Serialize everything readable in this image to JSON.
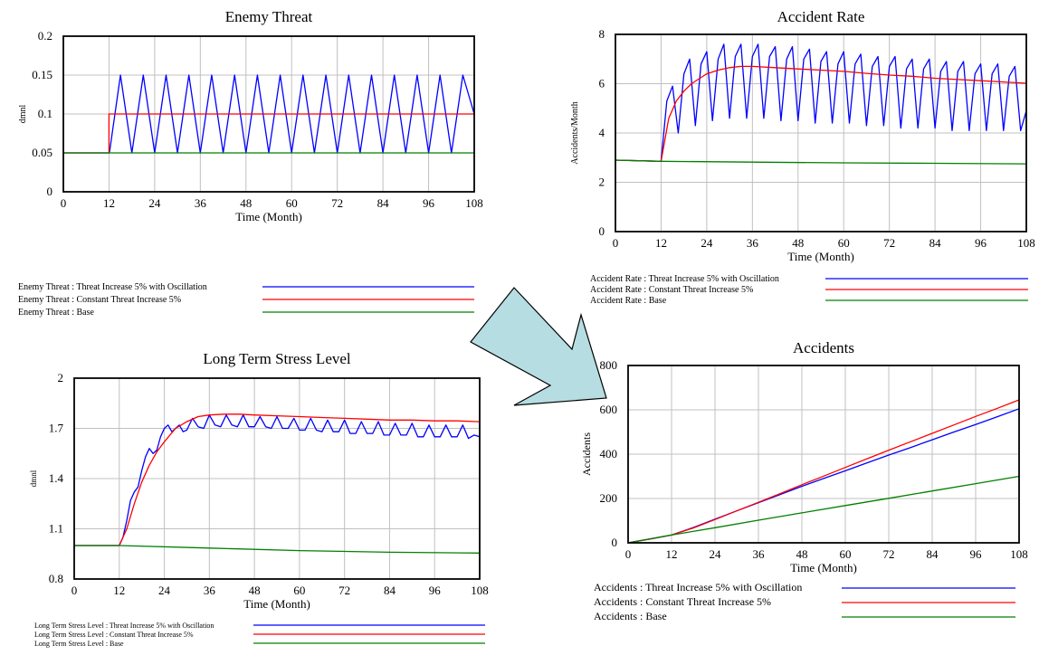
{
  "charts": [
    {
      "id": "chart-enemy",
      "title": "Enemy Threat",
      "xlabel": "Time (Month)",
      "ylabel": "dmnl",
      "xlim": [
        0,
        108
      ],
      "ylim": [
        0,
        0.2
      ],
      "xticks": [
        0,
        12,
        24,
        36,
        48,
        60,
        72,
        84,
        96,
        108
      ],
      "yticks": [
        0,
        0.05,
        0.1,
        0.15,
        0.2
      ],
      "ytick_labels": [
        "0",
        "0.05",
        "0.1",
        "0.15",
        "0.2"
      ],
      "legend": [
        "Enemy Threat : Threat Increase 5% with Oscillation",
        "Enemy Threat : Constant Threat Increase 5%",
        "Enemy Threat : Base"
      ]
    },
    {
      "id": "chart-accrate",
      "title": "Accident Rate",
      "xlabel": "Time (Month)",
      "ylabel": "Accidents/Month",
      "xlim": [
        0,
        108
      ],
      "ylim": [
        0,
        8
      ],
      "xticks": [
        0,
        12,
        24,
        36,
        48,
        60,
        72,
        84,
        96,
        108
      ],
      "yticks": [
        0,
        2,
        4,
        6,
        8
      ],
      "ytick_labels": [
        "0",
        "2",
        "4",
        "6",
        "8"
      ],
      "legend": [
        "Accident Rate : Threat Increase 5% with Oscillation",
        "Accident Rate : Constant Threat Increase 5%",
        "Accident Rate : Base"
      ]
    },
    {
      "id": "chart-stress",
      "title": "Long Term Stress Level",
      "xlabel": "Time (Month)",
      "ylabel": "dmnl",
      "xlim": [
        0,
        108
      ],
      "ylim": [
        0.8,
        2.0
      ],
      "xticks": [
        0,
        12,
        24,
        36,
        48,
        60,
        72,
        84,
        96,
        108
      ],
      "yticks": [
        0.8,
        1.1,
        1.4,
        1.7,
        2.0
      ],
      "ytick_labels": [
        "0.8",
        "1.1",
        "1.4",
        "1.7",
        "2"
      ],
      "legend": [
        "Long Term Stress Level : Threat Increase 5% with Oscillation",
        "Long Term Stress Level : Constant Threat Increase 5%",
        "Long Term Stress Level : Base"
      ]
    },
    {
      "id": "chart-accidents",
      "title": "Accidents",
      "xlabel": "Time (Month)",
      "ylabel": "Accidents",
      "xlim": [
        0,
        108
      ],
      "ylim": [
        0,
        800
      ],
      "xticks": [
        0,
        12,
        24,
        36,
        48,
        60,
        72,
        84,
        96,
        108
      ],
      "yticks": [
        0,
        200,
        400,
        600,
        800
      ],
      "ytick_labels": [
        "0",
        "200",
        "400",
        "600",
        "800"
      ],
      "legend": [
        "Accidents : Threat Increase 5% with Oscillation",
        "Accidents : Constant Threat Increase 5%",
        "Accidents : Base"
      ]
    }
  ],
  "series_colors": [
    "#0000ff",
    "#ff0000",
    "#008000"
  ],
  "chart_data": [
    {
      "type": "line",
      "title": "Enemy Threat",
      "xlabel": "Time (Month)",
      "ylabel": "dmnl",
      "xlim": [
        0,
        108
      ],
      "ylim": [
        0,
        0.2
      ],
      "grid": true,
      "legend": "bottom",
      "series": [
        {
          "name": "Enemy Threat : Threat Increase 5% with Oscillation",
          "x": [
            0,
            12,
            12.1,
            15,
            18,
            21,
            24,
            27,
            30,
            33,
            36,
            39,
            42,
            45,
            48,
            51,
            54,
            57,
            60,
            63,
            66,
            69,
            72,
            75,
            78,
            81,
            84,
            87,
            90,
            93,
            96,
            99,
            102,
            105,
            108
          ],
          "y": [
            0.05,
            0.05,
            0.05,
            0.15,
            0.05,
            0.15,
            0.05,
            0.15,
            0.05,
            0.15,
            0.05,
            0.15,
            0.05,
            0.15,
            0.05,
            0.15,
            0.05,
            0.15,
            0.05,
            0.15,
            0.05,
            0.15,
            0.05,
            0.15,
            0.05,
            0.15,
            0.05,
            0.15,
            0.05,
            0.15,
            0.05,
            0.15,
            0.05,
            0.15,
            0.1
          ]
        },
        {
          "name": "Enemy Threat : Constant Threat Increase 5%",
          "x": [
            0,
            12,
            12,
            108
          ],
          "y": [
            0.05,
            0.05,
            0.1,
            0.1
          ]
        },
        {
          "name": "Enemy Threat : Base",
          "x": [
            0,
            108
          ],
          "y": [
            0.05,
            0.05
          ]
        }
      ]
    },
    {
      "type": "line",
      "title": "Accident Rate",
      "xlabel": "Time (Month)",
      "ylabel": "Accidents/Month",
      "xlim": [
        0,
        108
      ],
      "ylim": [
        0,
        8
      ],
      "grid": true,
      "legend": "bottom",
      "series": [
        {
          "name": "Accident Rate : Threat Increase 5% with Oscillation",
          "x": [
            0,
            12,
            13.5,
            15,
            16.5,
            18,
            19.5,
            21,
            22.5,
            24,
            25.5,
            27,
            28.5,
            30,
            31.5,
            33,
            34.5,
            36,
            37.5,
            39,
            40.5,
            42,
            43.5,
            45,
            46.5,
            48,
            49.5,
            51,
            52.5,
            54,
            55.5,
            57,
            58.5,
            60,
            61.5,
            63,
            64.5,
            66,
            67.5,
            69,
            70.5,
            72,
            73.5,
            75,
            76.5,
            78,
            79.5,
            81,
            82.5,
            84,
            85.5,
            87,
            88.5,
            90,
            91.5,
            93,
            94.5,
            96,
            97.5,
            99,
            100.5,
            102,
            103.5,
            105,
            106.5,
            108
          ],
          "y": [
            2.9,
            2.85,
            5.3,
            5.9,
            4.0,
            6.4,
            7.0,
            4.3,
            6.8,
            7.3,
            4.5,
            7.0,
            7.6,
            4.6,
            7.1,
            7.6,
            4.6,
            7.1,
            7.6,
            4.6,
            7.1,
            7.5,
            4.5,
            7.0,
            7.5,
            4.5,
            7.0,
            7.4,
            4.4,
            6.9,
            7.3,
            4.4,
            6.8,
            7.3,
            4.4,
            6.8,
            7.2,
            4.3,
            6.7,
            7.1,
            4.3,
            6.7,
            7.1,
            4.2,
            6.6,
            7.0,
            4.2,
            6.6,
            7.0,
            4.2,
            6.5,
            6.9,
            4.1,
            6.5,
            6.9,
            4.1,
            6.4,
            6.8,
            4.1,
            6.4,
            6.8,
            4.1,
            6.3,
            6.7,
            4.1,
            4.9
          ]
        },
        {
          "name": "Accident Rate : Constant Threat Increase 5%",
          "x": [
            0,
            12,
            14,
            16,
            18,
            20,
            22,
            24,
            27,
            30,
            33,
            36,
            42,
            48,
            54,
            60,
            66,
            72,
            78,
            84,
            90,
            96,
            102,
            108
          ],
          "y": [
            2.9,
            2.85,
            4.6,
            5.3,
            5.7,
            6.0,
            6.2,
            6.4,
            6.55,
            6.65,
            6.7,
            6.7,
            6.65,
            6.6,
            6.55,
            6.5,
            6.42,
            6.35,
            6.3,
            6.22,
            6.17,
            6.12,
            6.07,
            6.02
          ]
        },
        {
          "name": "Accident Rate : Base",
          "x": [
            0,
            12,
            36,
            60,
            84,
            108
          ],
          "y": [
            2.9,
            2.85,
            2.82,
            2.79,
            2.77,
            2.75
          ]
        }
      ]
    },
    {
      "type": "line",
      "title": "Long Term Stress Level",
      "xlabel": "Time (Month)",
      "ylabel": "dmnl",
      "xlim": [
        0,
        108
      ],
      "ylim": [
        0.8,
        2.0
      ],
      "grid": true,
      "legend": "bottom",
      "series": [
        {
          "name": "Long Term Stress Level : Threat Increase 5% with Oscillation",
          "x": [
            0,
            12,
            13,
            14,
            15,
            16,
            17,
            18,
            19,
            20,
            21,
            22,
            23,
            24,
            25,
            26,
            27,
            28,
            29,
            30,
            31.5,
            33,
            34.5,
            36,
            37.5,
            39,
            40.5,
            42,
            43.5,
            45,
            46.5,
            48,
            49.5,
            51,
            52.5,
            54,
            55.5,
            57,
            58.5,
            60,
            61.5,
            63,
            64.5,
            66,
            67.5,
            69,
            70.5,
            72,
            73.5,
            75,
            76.5,
            78,
            79.5,
            81,
            82.5,
            84,
            85.5,
            87,
            88.5,
            90,
            91.5,
            93,
            94.5,
            96,
            97.5,
            99,
            100.5,
            102,
            103.5,
            105,
            106.5,
            108
          ],
          "y": [
            1.0,
            1.0,
            1.05,
            1.15,
            1.27,
            1.32,
            1.35,
            1.45,
            1.53,
            1.58,
            1.55,
            1.57,
            1.65,
            1.7,
            1.72,
            1.68,
            1.7,
            1.72,
            1.68,
            1.69,
            1.76,
            1.71,
            1.7,
            1.78,
            1.72,
            1.71,
            1.78,
            1.72,
            1.71,
            1.78,
            1.71,
            1.71,
            1.77,
            1.71,
            1.7,
            1.77,
            1.7,
            1.7,
            1.76,
            1.69,
            1.69,
            1.76,
            1.69,
            1.68,
            1.75,
            1.68,
            1.68,
            1.75,
            1.67,
            1.67,
            1.74,
            1.67,
            1.67,
            1.74,
            1.66,
            1.66,
            1.73,
            1.66,
            1.66,
            1.73,
            1.65,
            1.65,
            1.72,
            1.65,
            1.65,
            1.72,
            1.65,
            1.65,
            1.72,
            1.64,
            1.66,
            1.65
          ]
        },
        {
          "name": "Long Term Stress Level : Constant Threat Increase 5%",
          "x": [
            0,
            12,
            14,
            16,
            18,
            20,
            22,
            24,
            27,
            30,
            33,
            36,
            40,
            44,
            48,
            54,
            60,
            66,
            72,
            78,
            84,
            90,
            96,
            102,
            108
          ],
          "y": [
            1.0,
            1.0,
            1.1,
            1.25,
            1.38,
            1.48,
            1.56,
            1.62,
            1.7,
            1.74,
            1.77,
            1.78,
            1.785,
            1.785,
            1.78,
            1.775,
            1.77,
            1.765,
            1.76,
            1.755,
            1.75,
            1.75,
            1.745,
            1.745,
            1.74
          ]
        },
        {
          "name": "Long Term Stress Level : Base",
          "x": [
            0,
            12,
            36,
            60,
            84,
            108
          ],
          "y": [
            1.0,
            1.0,
            0.985,
            0.97,
            0.96,
            0.955
          ]
        }
      ]
    },
    {
      "type": "line",
      "title": "Accidents",
      "xlabel": "Time (Month)",
      "ylabel": "Accidents",
      "xlim": [
        0,
        108
      ],
      "ylim": [
        0,
        800
      ],
      "grid": true,
      "legend": "bottom",
      "series": [
        {
          "name": "Accidents : Threat Increase 5% with Oscillation",
          "x": [
            0,
            6,
            12,
            18,
            24,
            30,
            36,
            42,
            48,
            54,
            60,
            66,
            72,
            78,
            84,
            90,
            96,
            102,
            108
          ],
          "y": [
            0,
            17,
            35,
            69,
            107,
            144,
            181,
            218,
            255,
            290,
            325,
            361,
            396,
            430,
            465,
            500,
            534,
            569,
            605
          ]
        },
        {
          "name": "Accidents : Constant Threat Increase 5%",
          "x": [
            0,
            6,
            12,
            18,
            24,
            30,
            36,
            42,
            48,
            54,
            60,
            66,
            72,
            78,
            84,
            90,
            96,
            102,
            108
          ],
          "y": [
            0,
            17,
            35,
            67,
            105,
            144,
            183,
            222,
            262,
            301,
            340,
            379,
            418,
            456,
            494,
            532,
            570,
            607,
            645
          ]
        },
        {
          "name": "Accidents : Base",
          "x": [
            0,
            12,
            24,
            36,
            48,
            60,
            72,
            84,
            96,
            108
          ],
          "y": [
            0,
            35,
            68,
            102,
            135,
            168,
            201,
            234,
            267,
            300
          ]
        }
      ]
    }
  ]
}
